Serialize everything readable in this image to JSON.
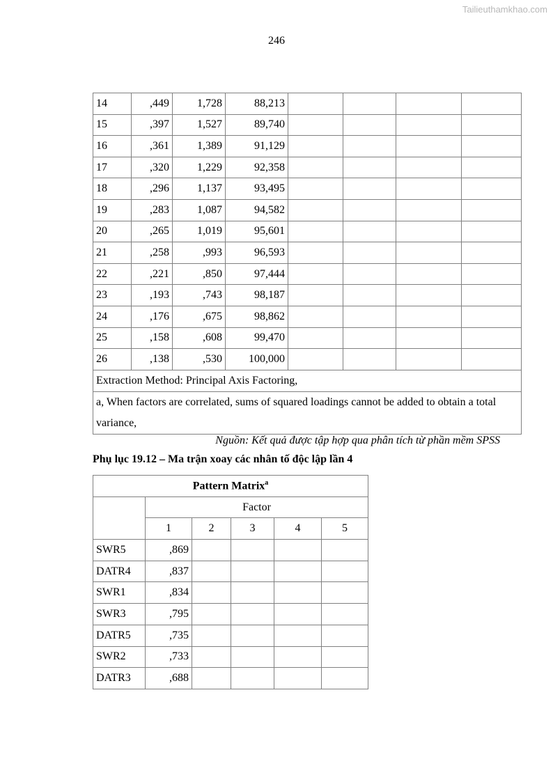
{
  "watermark": "Tailieuthamkhao.com",
  "page_number": "246",
  "variance_table": {
    "rows": [
      [
        "14",
        ",449",
        "1,728",
        "88,213"
      ],
      [
        "15",
        ",397",
        "1,527",
        "89,740"
      ],
      [
        "16",
        ",361",
        "1,389",
        "91,129"
      ],
      [
        "17",
        ",320",
        "1,229",
        "92,358"
      ],
      [
        "18",
        ",296",
        "1,137",
        "93,495"
      ],
      [
        "19",
        ",283",
        "1,087",
        "94,582"
      ],
      [
        "20",
        ",265",
        "1,019",
        "95,601"
      ],
      [
        "21",
        ",258",
        ",993",
        "96,593"
      ],
      [
        "22",
        ",221",
        ",850",
        "97,444"
      ],
      [
        "23",
        ",193",
        ",743",
        "98,187"
      ],
      [
        "24",
        ",176",
        ",675",
        "98,862"
      ],
      [
        "25",
        ",158",
        ",608",
        "99,470"
      ],
      [
        "26",
        ",138",
        ",530",
        "100,000"
      ]
    ],
    "footnote_method": "Extraction Method: Principal Axis Factoring,",
    "footnote_a": "a, When factors are correlated, sums of squared loadings cannot be added to obtain a total variance,"
  },
  "source": "Nguồn: Kết quả được tập hợp qua phân tích từ phần mềm SPSS",
  "caption": "Phụ lục 19.12 – Ma trận xoay các nhân tố độc lập lần 4",
  "pattern_matrix": {
    "title": "Pattern Matrix",
    "title_sup": "a",
    "factor_label": "Factor",
    "factors": [
      "1",
      "2",
      "3",
      "4",
      "5"
    ],
    "rows": [
      {
        "item": "SWR5",
        "values": [
          ",869",
          "",
          "",
          "",
          ""
        ]
      },
      {
        "item": "DATR4",
        "values": [
          ",837",
          "",
          "",
          "",
          ""
        ]
      },
      {
        "item": "SWR1",
        "values": [
          ",834",
          "",
          "",
          "",
          ""
        ]
      },
      {
        "item": "SWR3",
        "values": [
          ",795",
          "",
          "",
          "",
          ""
        ]
      },
      {
        "item": "DATR5",
        "values": [
          ",735",
          "",
          "",
          "",
          ""
        ]
      },
      {
        "item": "SWR2",
        "values": [
          ",733",
          "",
          "",
          "",
          ""
        ]
      },
      {
        "item": "DATR3",
        "values": [
          ",688",
          "",
          "",
          "",
          ""
        ]
      }
    ]
  }
}
